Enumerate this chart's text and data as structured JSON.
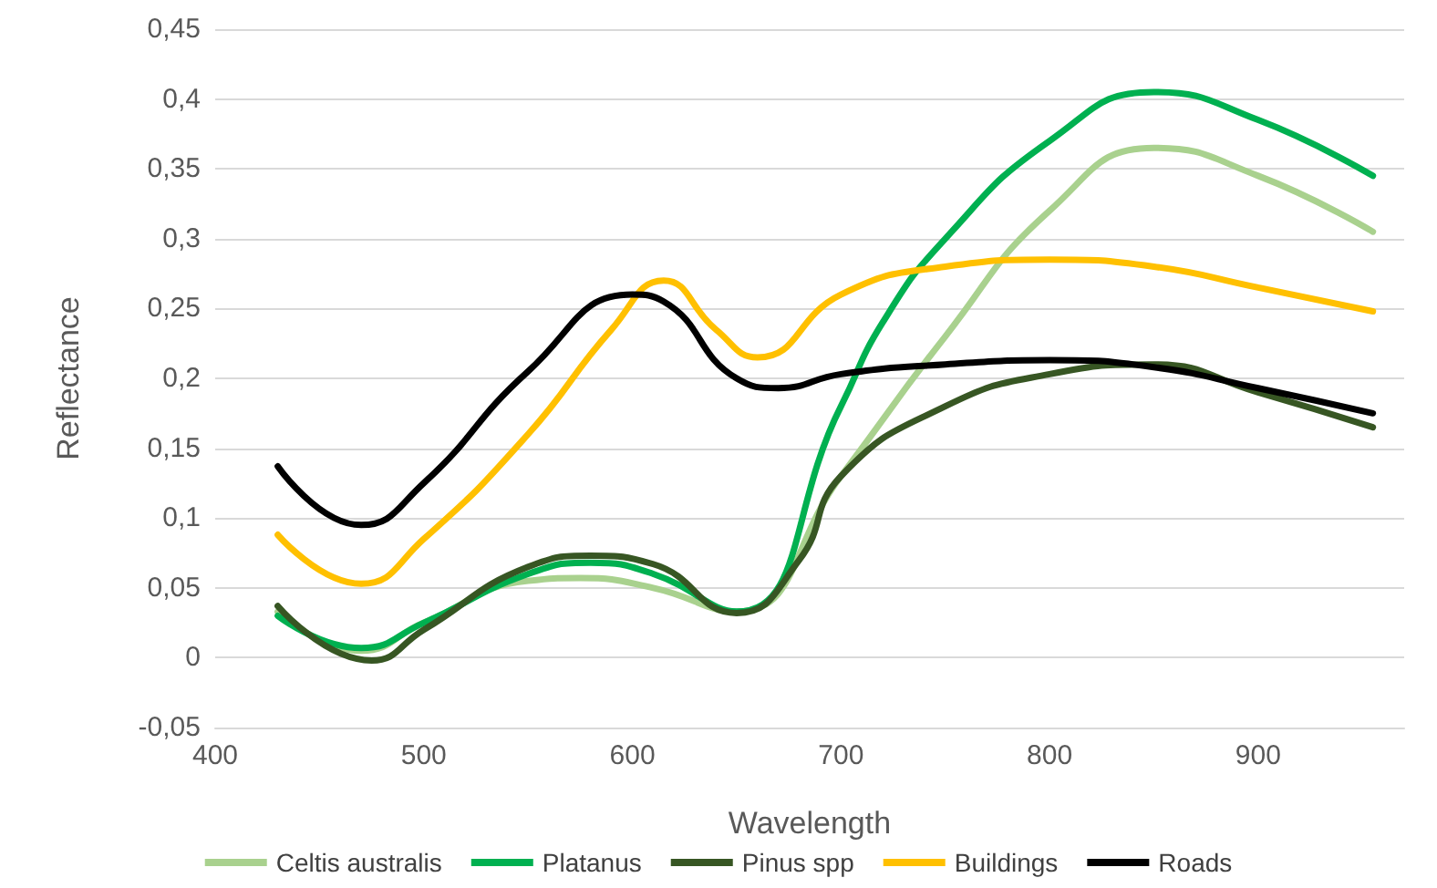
{
  "chart_data": {
    "type": "line",
    "xlabel": "Wavelength",
    "ylabel": "Reflectance",
    "xlim": [
      400,
      970
    ],
    "xticks": [
      400,
      500,
      600,
      700,
      800,
      900
    ],
    "ylim": [
      -0.05,
      0.45
    ],
    "yticks": [
      {
        "value": -0.05,
        "label": "-0,05"
      },
      {
        "value": 0,
        "label": "0"
      },
      {
        "value": 0.05,
        "label": "0,05"
      },
      {
        "value": 0.1,
        "label": "0,1"
      },
      {
        "value": 0.15,
        "label": "0,15"
      },
      {
        "value": 0.2,
        "label": "0,2"
      },
      {
        "value": 0.25,
        "label": "0,25"
      },
      {
        "value": 0.3,
        "label": "0,3"
      },
      {
        "value": 0.35,
        "label": "0,35"
      },
      {
        "value": 0.4,
        "label": "0,4"
      },
      {
        "value": 0.45,
        "label": "0,45"
      }
    ],
    "grid": "y",
    "legend": "bottom",
    "marker": "none",
    "line_style": "solid",
    "series": [
      {
        "name": "Celtis australis",
        "color": "#a9d18e",
        "x": [
          430,
          470,
          500,
          550,
          575,
          610,
          650,
          700,
          750,
          800,
          850,
          900,
          955
        ],
        "values": [
          0.033,
          0.005,
          0.025,
          0.055,
          0.057,
          0.05,
          0.033,
          0.13,
          0.23,
          0.32,
          0.365,
          0.345,
          0.305
        ]
      },
      {
        "name": "Platanus",
        "color": "#00b050",
        "x": [
          430,
          470,
          500,
          550,
          580,
          610,
          650,
          700,
          720,
          750,
          800,
          850,
          900,
          955
        ],
        "values": [
          0.03,
          0.007,
          0.025,
          0.06,
          0.068,
          0.06,
          0.033,
          0.18,
          0.24,
          0.3,
          0.37,
          0.405,
          0.385,
          0.345
        ]
      },
      {
        "name": "Pinus spp",
        "color": "#375623",
        "x": [
          430,
          475,
          500,
          550,
          580,
          610,
          650,
          680,
          700,
          750,
          800,
          850,
          900,
          955
        ],
        "values": [
          0.037,
          -0.002,
          0.02,
          0.065,
          0.073,
          0.067,
          0.032,
          0.07,
          0.13,
          0.18,
          0.203,
          0.21,
          0.19,
          0.165
        ]
      },
      {
        "name": "Buildings",
        "color": "#ffc000",
        "x": [
          430,
          470,
          500,
          550,
          590,
          615,
          640,
          660,
          700,
          750,
          800,
          850,
          900,
          955
        ],
        "values": [
          0.088,
          0.053,
          0.085,
          0.16,
          0.235,
          0.27,
          0.235,
          0.215,
          0.26,
          0.28,
          0.285,
          0.28,
          0.265,
          0.248
        ]
      },
      {
        "name": "Roads",
        "color": "#000000",
        "x": [
          430,
          470,
          500,
          550,
          600,
          615,
          650,
          670,
          700,
          750,
          800,
          850,
          900,
          955
        ],
        "values": [
          0.137,
          0.095,
          0.125,
          0.205,
          0.26,
          0.255,
          0.2,
          0.193,
          0.203,
          0.21,
          0.213,
          0.208,
          0.193,
          0.175
        ]
      }
    ]
  }
}
